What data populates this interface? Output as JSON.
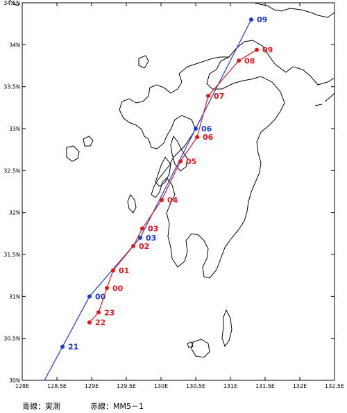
{
  "map": {
    "lon_range": [
      128.0,
      132.5
    ],
    "lat_range": [
      30.0,
      34.5
    ],
    "lon_ticks": [
      "128E",
      "128.5E",
      "129E",
      "129.5E",
      "130E",
      "130.5E",
      "131E",
      "131.5E",
      "132E",
      "132.5E"
    ],
    "lat_ticks": [
      "30N",
      "30.5N",
      "31N",
      "31.5N",
      "32N",
      "32.5N",
      "33N",
      "33.5N",
      "34N",
      "34.5N"
    ],
    "colors": {
      "observed": "#1a37e6",
      "model": "#e8161b",
      "coast": "#000000"
    }
  },
  "tracks": {
    "observed": {
      "name": "実測",
      "points": [
        {
          "label": "21",
          "lon": 128.58,
          "lat": 30.4
        },
        {
          "label": "00",
          "lon": 128.97,
          "lat": 31.0
        },
        {
          "label": "03",
          "lon": 129.7,
          "lat": 31.7
        },
        {
          "label": "06",
          "lon": 130.5,
          "lat": 33.0
        },
        {
          "label": "09",
          "lon": 131.3,
          "lat": 34.3
        }
      ]
    },
    "model": {
      "name": "MM5－1",
      "points": [
        {
          "label": "22",
          "lon": 128.97,
          "lat": 30.69
        },
        {
          "label": "23",
          "lon": 129.1,
          "lat": 30.81
        },
        {
          "label": "00",
          "lon": 129.22,
          "lat": 31.1
        },
        {
          "label": "01",
          "lon": 129.31,
          "lat": 31.31
        },
        {
          "label": "02",
          "lon": 129.6,
          "lat": 31.6
        },
        {
          "label": "03",
          "lon": 129.73,
          "lat": 31.81
        },
        {
          "label": "04",
          "lon": 130.01,
          "lat": 32.15
        },
        {
          "label": "05",
          "lon": 130.28,
          "lat": 32.61
        },
        {
          "label": "06",
          "lon": 130.52,
          "lat": 32.9
        },
        {
          "label": "07",
          "lon": 130.68,
          "lat": 33.39
        },
        {
          "label": "08",
          "lon": 131.12,
          "lat": 33.81
        },
        {
          "label": "09",
          "lon": 131.38,
          "lat": 33.94
        }
      ]
    }
  },
  "legend": {
    "observed_text": "青線：実測",
    "model_text": "赤線：MM5－1"
  }
}
